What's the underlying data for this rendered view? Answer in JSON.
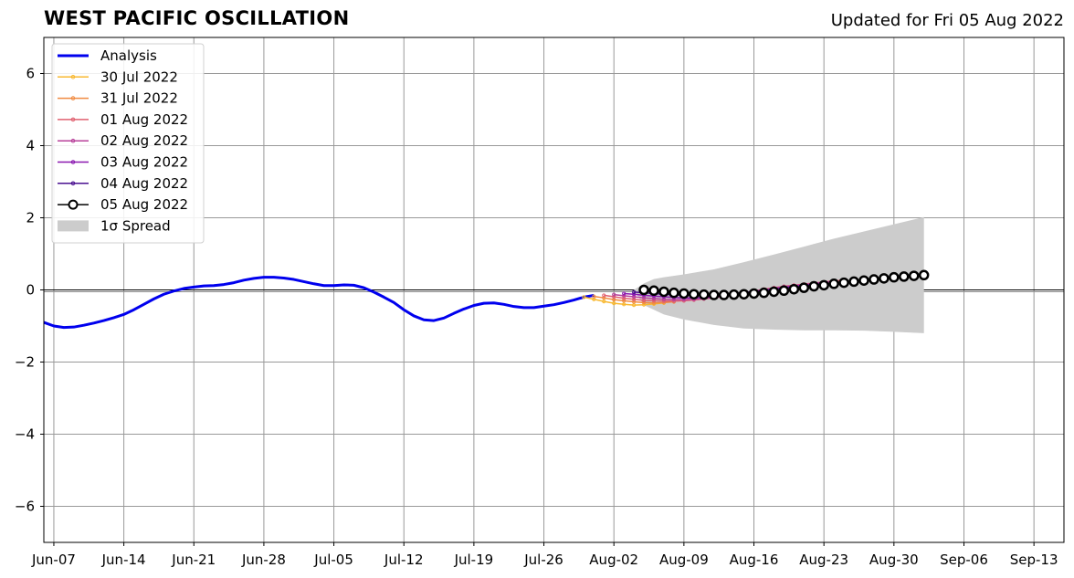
{
  "chart_data": {
    "type": "line",
    "title": "WEST PACIFIC OSCILLATION",
    "subtitle": "Updated for Fri 05 Aug 2022",
    "xlabel": "",
    "ylabel": "",
    "ylim": [
      -7,
      7
    ],
    "xlim": [
      "2022-06-06",
      "2022-09-16"
    ],
    "grid": true,
    "legend_position": "top-left",
    "x_ticks": [
      "Jun-07",
      "Jun-14",
      "Jun-21",
      "Jun-28",
      "Jul-05",
      "Jul-12",
      "Jul-19",
      "Jul-26",
      "Aug-02",
      "Aug-09",
      "Aug-16",
      "Aug-23",
      "Aug-30",
      "Sep-06",
      "Sep-13"
    ],
    "y_ticks": [
      "6",
      "4",
      "2",
      "0",
      "−2",
      "−4",
      "−6"
    ],
    "series": [
      {
        "name": "Analysis",
        "color": "#0000ee",
        "x": [
          "2022-06-06",
          "2022-06-07",
          "2022-06-08",
          "2022-06-09",
          "2022-06-10",
          "2022-06-11",
          "2022-06-12",
          "2022-06-13",
          "2022-06-14",
          "2022-06-15",
          "2022-06-16",
          "2022-06-17",
          "2022-06-18",
          "2022-06-19",
          "2022-06-20",
          "2022-06-21",
          "2022-06-22",
          "2022-06-23",
          "2022-06-24",
          "2022-06-25",
          "2022-06-26",
          "2022-06-27",
          "2022-06-28",
          "2022-06-29",
          "2022-06-30",
          "2022-07-01",
          "2022-07-02",
          "2022-07-03",
          "2022-07-04",
          "2022-07-05",
          "2022-07-06",
          "2022-07-07",
          "2022-07-08",
          "2022-07-09",
          "2022-07-10",
          "2022-07-11",
          "2022-07-12",
          "2022-07-13",
          "2022-07-14",
          "2022-07-15",
          "2022-07-16",
          "2022-07-17",
          "2022-07-18",
          "2022-07-19",
          "2022-07-20",
          "2022-07-21",
          "2022-07-22",
          "2022-07-23",
          "2022-07-24",
          "2022-07-25",
          "2022-07-26",
          "2022-07-27",
          "2022-07-28",
          "2022-07-29",
          "2022-07-30",
          "2022-07-31"
        ],
        "y": [
          -0.9,
          -1.0,
          -1.04,
          -1.03,
          -0.98,
          -0.92,
          -0.85,
          -0.77,
          -0.68,
          -0.55,
          -0.4,
          -0.25,
          -0.12,
          -0.03,
          0.04,
          0.08,
          0.11,
          0.12,
          0.15,
          0.2,
          0.27,
          0.32,
          0.35,
          0.35,
          0.33,
          0.29,
          0.23,
          0.17,
          0.12,
          0.12,
          0.14,
          0.13,
          0.06,
          -0.06,
          -0.2,
          -0.35,
          -0.55,
          -0.72,
          -0.83,
          -0.85,
          -0.78,
          -0.65,
          -0.53,
          -0.43,
          -0.37,
          -0.36,
          -0.4,
          -0.46,
          -0.49,
          -0.49,
          -0.45,
          -0.41,
          -0.35,
          -0.28,
          -0.2,
          -0.15
        ]
      },
      {
        "name": "30 Jul 2022",
        "color": "#f8b830",
        "x": [
          "2022-07-30",
          "2022-07-31",
          "2022-08-01",
          "2022-08-02",
          "2022-08-03",
          "2022-08-04",
          "2022-08-05",
          "2022-08-06",
          "2022-08-07"
        ],
        "y": [
          -0.2,
          -0.26,
          -0.32,
          -0.37,
          -0.4,
          -0.42,
          -0.41,
          -0.39,
          -0.36
        ]
      },
      {
        "name": "31 Jul 2022",
        "color": "#f08a40",
        "x": [
          "2022-07-31",
          "2022-08-01",
          "2022-08-02",
          "2022-08-03",
          "2022-08-04",
          "2022-08-05",
          "2022-08-06",
          "2022-08-07",
          "2022-08-08"
        ],
        "y": [
          -0.18,
          -0.22,
          -0.27,
          -0.3,
          -0.33,
          -0.35,
          -0.36,
          -0.35,
          -0.33
        ]
      },
      {
        "name": "01 Aug 2022",
        "color": "#e06070",
        "x": [
          "2022-08-01",
          "2022-08-02",
          "2022-08-03",
          "2022-08-04",
          "2022-08-05",
          "2022-08-06",
          "2022-08-07",
          "2022-08-08",
          "2022-08-09",
          "2022-08-10",
          "2022-08-11",
          "2022-08-12",
          "2022-08-13",
          "2022-08-14",
          "2022-08-15",
          "2022-08-16",
          "2022-08-17",
          "2022-08-18",
          "2022-08-19",
          "2022-08-20",
          "2022-08-21",
          "2022-08-22",
          "2022-08-23",
          "2022-08-24",
          "2022-08-25"
        ],
        "y": [
          -0.15,
          -0.19,
          -0.23,
          -0.26,
          -0.29,
          -0.3,
          -0.31,
          -0.31,
          -0.3,
          -0.28,
          -0.25,
          -0.22,
          -0.18,
          -0.13,
          -0.08,
          -0.03,
          0.02,
          0.06,
          0.1,
          0.13,
          0.16,
          0.19,
          0.22,
          0.25,
          0.27
        ]
      },
      {
        "name": "02 Aug 2022",
        "color": "#b8409a",
        "x": [
          "2022-08-02",
          "2022-08-03",
          "2022-08-04",
          "2022-08-05",
          "2022-08-06",
          "2022-08-07",
          "2022-08-08",
          "2022-08-09",
          "2022-08-10",
          "2022-08-11",
          "2022-08-12",
          "2022-08-13",
          "2022-08-14",
          "2022-08-15",
          "2022-08-16",
          "2022-08-17",
          "2022-08-18",
          "2022-08-19",
          "2022-08-20",
          "2022-08-21",
          "2022-08-22",
          "2022-08-23",
          "2022-08-24"
        ],
        "y": [
          -0.13,
          -0.16,
          -0.19,
          -0.22,
          -0.24,
          -0.26,
          -0.27,
          -0.27,
          -0.26,
          -0.24,
          -0.21,
          -0.17,
          -0.13,
          -0.08,
          -0.04,
          0.0,
          0.05,
          0.09,
          0.12,
          0.15,
          0.18,
          0.21,
          0.24
        ]
      },
      {
        "name": "03 Aug 2022",
        "color": "#8a18b0",
        "x": [
          "2022-08-03",
          "2022-08-04",
          "2022-08-05",
          "2022-08-06",
          "2022-08-07",
          "2022-08-08",
          "2022-08-09",
          "2022-08-10",
          "2022-08-11",
          "2022-08-12",
          "2022-08-13",
          "2022-08-14",
          "2022-08-15",
          "2022-08-16",
          "2022-08-17",
          "2022-08-18",
          "2022-08-19",
          "2022-08-20",
          "2022-08-21",
          "2022-08-22",
          "2022-08-23"
        ],
        "y": [
          -0.1,
          -0.12,
          -0.15,
          -0.17,
          -0.19,
          -0.21,
          -0.22,
          -0.22,
          -0.21,
          -0.19,
          -0.17,
          -0.14,
          -0.1,
          -0.06,
          -0.02,
          0.02,
          0.06,
          0.1,
          0.13,
          0.16,
          0.19
        ]
      },
      {
        "name": "04 Aug 2022",
        "color": "#4a1090",
        "x": [
          "2022-08-04",
          "2022-08-05",
          "2022-08-06",
          "2022-08-07",
          "2022-08-08",
          "2022-08-09",
          "2022-08-10",
          "2022-08-11",
          "2022-08-12",
          "2022-08-13",
          "2022-08-14",
          "2022-08-15",
          "2022-08-16",
          "2022-08-17",
          "2022-08-18",
          "2022-08-19",
          "2022-08-20",
          "2022-08-21",
          "2022-08-22"
        ],
        "y": [
          -0.06,
          -0.08,
          -0.1,
          -0.12,
          -0.14,
          -0.15,
          -0.15,
          -0.14,
          -0.13,
          -0.12,
          -0.1,
          -0.07,
          -0.04,
          -0.01,
          0.02,
          0.05,
          0.08,
          0.11,
          0.14
        ]
      },
      {
        "name": "05 Aug 2022",
        "color": "#000000",
        "x": [
          "2022-08-05",
          "2022-08-06",
          "2022-08-07",
          "2022-08-08",
          "2022-08-09",
          "2022-08-10",
          "2022-08-11",
          "2022-08-12",
          "2022-08-13",
          "2022-08-14",
          "2022-08-15",
          "2022-08-16",
          "2022-08-17",
          "2022-08-18",
          "2022-08-19",
          "2022-08-20",
          "2022-08-21",
          "2022-08-22",
          "2022-08-23",
          "2022-08-24",
          "2022-08-25",
          "2022-08-26",
          "2022-08-27",
          "2022-08-28",
          "2022-08-29",
          "2022-08-30",
          "2022-08-31",
          "2022-09-01",
          "2022-09-02"
        ],
        "y": [
          0.0,
          -0.02,
          -0.05,
          -0.08,
          -0.1,
          -0.12,
          -0.13,
          -0.14,
          -0.14,
          -0.13,
          -0.12,
          -0.1,
          -0.08,
          -0.05,
          -0.02,
          0.02,
          0.06,
          0.1,
          0.13,
          0.17,
          0.2,
          0.23,
          0.26,
          0.29,
          0.32,
          0.35,
          0.37,
          0.39,
          0.41
        ]
      }
    ],
    "spread": {
      "name": "1σ Spread",
      "color": "#cccccc",
      "x": [
        "2022-08-04",
        "2022-08-05",
        "2022-08-06",
        "2022-08-07",
        "2022-08-09",
        "2022-08-12",
        "2022-08-15",
        "2022-08-18",
        "2022-08-21",
        "2022-08-24",
        "2022-08-27",
        "2022-08-30",
        "2022-09-02"
      ],
      "upper": [
        0.0,
        0.18,
        0.3,
        0.35,
        0.43,
        0.57,
        0.77,
        0.98,
        1.2,
        1.42,
        1.62,
        1.82,
        2.02
      ],
      "lower": [
        0.0,
        -0.42,
        -0.55,
        -0.68,
        -0.82,
        -0.97,
        -1.07,
        -1.1,
        -1.12,
        -1.12,
        -1.13,
        -1.16,
        -1.2
      ]
    },
    "legend": [
      {
        "label": "Analysis",
        "kind": "thick-line",
        "color": "#0000ee"
      },
      {
        "label": "30 Jul 2022",
        "kind": "dot-line",
        "color": "#f8b830"
      },
      {
        "label": "31 Jul 2022",
        "kind": "dot-line",
        "color": "#f08a40"
      },
      {
        "label": "01 Aug 2022",
        "kind": "dot-line",
        "color": "#e06070"
      },
      {
        "label": "02 Aug 2022",
        "kind": "dot-line",
        "color": "#b8409a"
      },
      {
        "label": "03 Aug 2022",
        "kind": "dot-line",
        "color": "#8a18b0"
      },
      {
        "label": "04 Aug 2022",
        "kind": "dot-line",
        "color": "#4a1090"
      },
      {
        "label": "05 Aug 2022",
        "kind": "circle-line",
        "color": "#000000"
      },
      {
        "label": "1σ Spread",
        "kind": "patch",
        "color": "#cccccc"
      }
    ]
  }
}
